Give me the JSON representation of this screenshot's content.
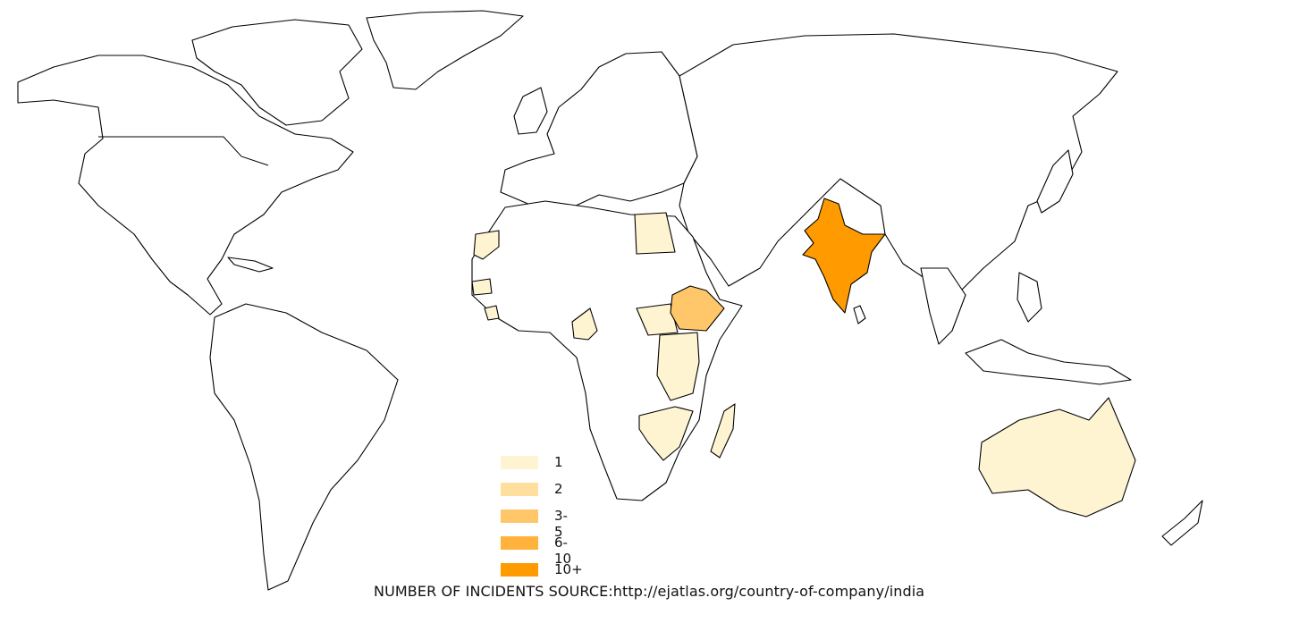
{
  "map": {
    "type": "choropleth",
    "region": "world",
    "fill_default": "#ffffff",
    "stroke": "#000000",
    "shaded_countries": [
      {
        "name": "India",
        "class": "10+",
        "color": "#ff9a00"
      },
      {
        "name": "Ethiopia",
        "class": "3-5",
        "color": "#ffc76a"
      },
      {
        "name": "Egypt",
        "class": "1",
        "color": "#fff4d2"
      },
      {
        "name": "Western Sahara",
        "class": "1",
        "color": "#fff4d2"
      },
      {
        "name": "Senegal",
        "class": "1",
        "color": "#fff4d2"
      },
      {
        "name": "Sierra Leone",
        "class": "1",
        "color": "#fff4d2"
      },
      {
        "name": "Cameroon",
        "class": "1",
        "color": "#fff4d2"
      },
      {
        "name": "South Sudan",
        "class": "1",
        "color": "#fff4d2"
      },
      {
        "name": "Kenya",
        "class": "1",
        "color": "#fff4d2"
      },
      {
        "name": "Uganda",
        "class": "1",
        "color": "#fff4d2"
      },
      {
        "name": "Rwanda",
        "class": "1",
        "color": "#fff4d2"
      },
      {
        "name": "Tanzania",
        "class": "1",
        "color": "#fff4d2"
      },
      {
        "name": "Mozambique",
        "class": "1",
        "color": "#fff4d2"
      },
      {
        "name": "Zimbabwe",
        "class": "1",
        "color": "#fff4d2"
      },
      {
        "name": "Madagascar",
        "class": "1",
        "color": "#fff4d2"
      },
      {
        "name": "Australia",
        "class": "1",
        "color": "#fff4d2"
      }
    ]
  },
  "legend": {
    "items": [
      {
        "label": "1",
        "color": "#fff4d2"
      },
      {
        "label": "2",
        "color": "#ffdf9e"
      },
      {
        "label": "3-5",
        "color": "#ffc76a"
      },
      {
        "label": "6-10",
        "color": "#ffb23c"
      },
      {
        "label": "10+",
        "color": "#ff9a00"
      }
    ]
  },
  "caption": "NUMBER OF INCIDENTS SOURCE:http://ejatlas.org/country-of-company/india"
}
